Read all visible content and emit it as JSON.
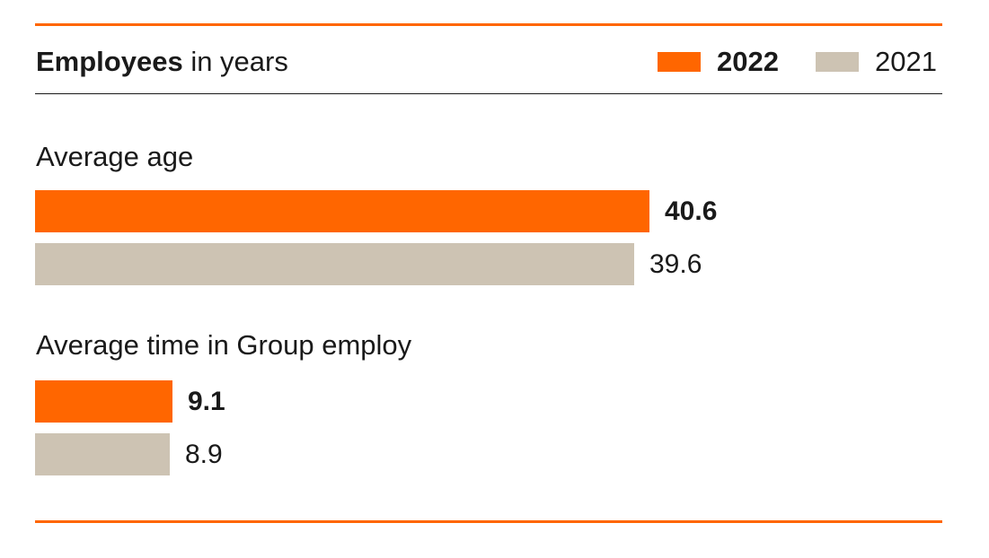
{
  "header": {
    "title_bold": "Employees",
    "title_rest": " in years"
  },
  "legend": [
    {
      "label": "2022",
      "color": "#ff6600",
      "bold": true
    },
    {
      "label": "2021",
      "color": "#cdc3b3",
      "bold": false
    }
  ],
  "chart_data": {
    "type": "bar",
    "orientation": "horizontal",
    "categories": [
      "Average age",
      "Average time in Group employ"
    ],
    "series": [
      {
        "name": "2022",
        "values": [
          40.6,
          9.1
        ],
        "labels": [
          "40.6",
          "9.1"
        ],
        "color": "#ff6600",
        "bold": true
      },
      {
        "name": "2021",
        "values": [
          39.6,
          8.9
        ],
        "labels": [
          "39.6",
          "8.9"
        ],
        "color": "#cdc3b3",
        "bold": false
      }
    ],
    "xlim": [
      0,
      40.6
    ],
    "grid": false,
    "legend_position": "top-right"
  }
}
